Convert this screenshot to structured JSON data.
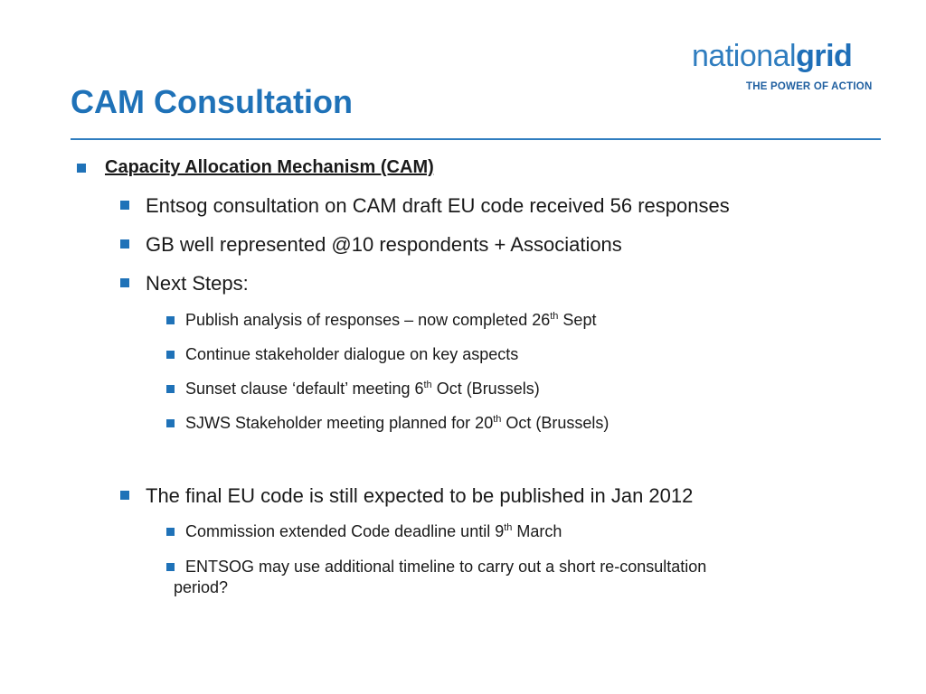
{
  "logo": {
    "word_regular": "national",
    "word_bold": "grid",
    "tagline": "THE POWER OF ACTION"
  },
  "title": "CAM Consultation",
  "heading": "Capacity Allocation Mechanism (CAM)",
  "bullets": {
    "b1": "Entsog consultation on CAM draft EU code received 56 responses",
    "b2": "GB well represented @10 respondents + Associations",
    "b3": "Next Steps:",
    "b3_1_pre": "Publish analysis of responses – now completed 26",
    "b3_1_sup": "th",
    "b3_1_post": " Sept",
    "b3_2": "Continue stakeholder dialogue on key aspects",
    "b3_3_pre": "Sunset clause ‘default’ meeting 6",
    "b3_3_sup": "th",
    "b3_3_post": " Oct (Brussels)",
    "b3_4_pre": "SJWS Stakeholder meeting planned for 20",
    "b3_4_sup": "th",
    "b3_4_post": " Oct (Brussels)",
    "b4": "The final EU code is still expected to be published in Jan 2012",
    "b4_1_pre": "Commission extended Code deadline until 9",
    "b4_1_sup": "th",
    "b4_1_post": " March",
    "b4_2_line1": "ENTSOG may use additional timeline to carry out a short re-consultation",
    "b4_2_line2": "period?"
  },
  "colors": {
    "accent": "#1f72b8",
    "text": "#1a1a1a"
  }
}
